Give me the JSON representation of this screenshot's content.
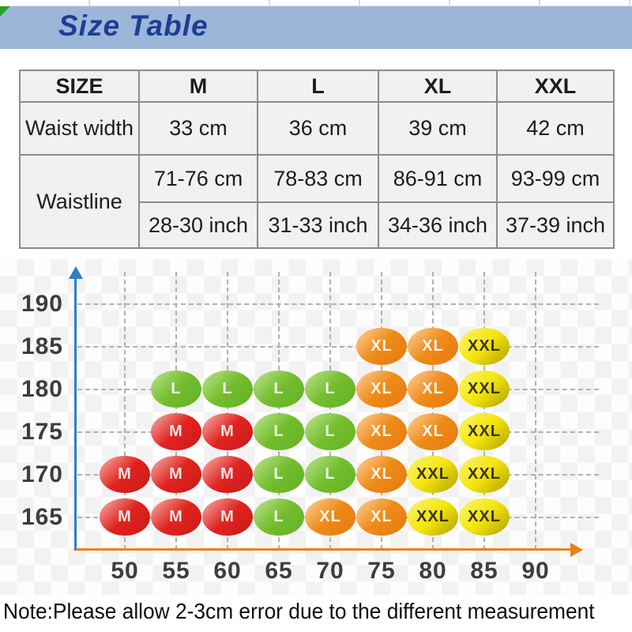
{
  "header": {
    "title": "Size Table",
    "bg_color": "#9cb6d9",
    "title_color": "#1c3e94",
    "corner_flag_color": "#27a327"
  },
  "size_table": {
    "columns": [
      "SIZE",
      "M",
      "L",
      "XL",
      "XXL"
    ],
    "waist_width": {
      "label": "Waist width",
      "values": [
        "33 cm",
        "36 cm",
        "39 cm",
        "42 cm"
      ]
    },
    "waistline": {
      "label": "Waistline",
      "cm": [
        "71-76 cm",
        "78-83 cm",
        "86-91 cm",
        "93-99 cm"
      ],
      "inch": [
        "28-30 inch",
        "31-33 inch",
        "34-36 inch",
        "37-39 inch"
      ]
    }
  },
  "chart_data": {
    "type": "scatter",
    "title": "",
    "xlabel": "",
    "ylabel": "",
    "x_ticks": [
      50,
      55,
      60,
      65,
      70,
      75,
      80,
      85,
      90
    ],
    "y_ticks": [
      190,
      185,
      180,
      175,
      170,
      165
    ],
    "grid": "dashed",
    "axis_colors": {
      "y": "#2e7fc3",
      "x": "#e8811c"
    },
    "series": [
      {
        "name": "M",
        "fill": "#e2231f",
        "gradient": [
          "#f08a82",
          "#e2231f",
          "#cf1d1b"
        ],
        "text_color": "rgba(255,255,255,0.88)",
        "points": [
          {
            "x": 50,
            "y": 170
          },
          {
            "x": 50,
            "y": 165
          },
          {
            "x": 55,
            "y": 175
          },
          {
            "x": 55,
            "y": 170
          },
          {
            "x": 55,
            "y": 165
          },
          {
            "x": 60,
            "y": 175
          },
          {
            "x": 60,
            "y": 170
          },
          {
            "x": 60,
            "y": 165
          }
        ]
      },
      {
        "name": "L",
        "fill": "#74be2f",
        "gradient": [
          "#a8d972",
          "#74be2f",
          "#67b527"
        ],
        "text_color": "rgba(255,255,255,0.88)",
        "points": [
          {
            "x": 55,
            "y": 180
          },
          {
            "x": 60,
            "y": 180
          },
          {
            "x": 65,
            "y": 180
          },
          {
            "x": 70,
            "y": 180
          },
          {
            "x": 65,
            "y": 175
          },
          {
            "x": 70,
            "y": 175
          },
          {
            "x": 65,
            "y": 170
          },
          {
            "x": 70,
            "y": 170
          },
          {
            "x": 65,
            "y": 165
          }
        ]
      },
      {
        "name": "XL",
        "fill": "#ef8a18",
        "gradient": [
          "#f8bd74",
          "#ef8a18",
          "#e87f12"
        ],
        "text_color": "rgba(255,255,255,0.9)",
        "points": [
          {
            "x": 75,
            "y": 185
          },
          {
            "x": 80,
            "y": 185
          },
          {
            "x": 75,
            "y": 180
          },
          {
            "x": 80,
            "y": 180
          },
          {
            "x": 75,
            "y": 175
          },
          {
            "x": 80,
            "y": 175
          },
          {
            "x": 75,
            "y": 170
          },
          {
            "x": 70,
            "y": 165
          },
          {
            "x": 75,
            "y": 165
          }
        ]
      },
      {
        "name": "XXL",
        "fill": "#f5e50a",
        "gradient": [
          "#f9f054",
          "#f5e50a",
          "#c3b408"
        ],
        "text_color": "#39340a",
        "points": [
          {
            "x": 85,
            "y": 185
          },
          {
            "x": 85,
            "y": 180
          },
          {
            "x": 85,
            "y": 175
          },
          {
            "x": 80,
            "y": 170
          },
          {
            "x": 85,
            "y": 170
          },
          {
            "x": 80,
            "y": 165
          },
          {
            "x": 85,
            "y": 165
          }
        ]
      }
    ]
  },
  "note": {
    "text": "Note:Please allow 2-3cm error due to the different measurement"
  }
}
